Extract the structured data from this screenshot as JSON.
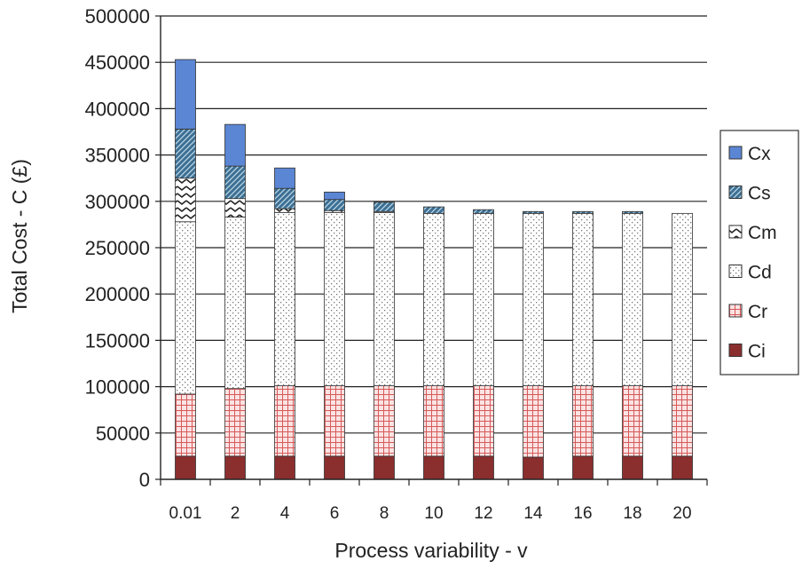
{
  "chart_data": {
    "type": "bar",
    "stacked": true,
    "xlabel": "Process variability - v",
    "ylabel": "Total Cost - C (£)",
    "ylim": [
      0,
      500000
    ],
    "yticks": [
      0,
      50000,
      100000,
      150000,
      200000,
      250000,
      300000,
      350000,
      400000,
      450000,
      500000
    ],
    "grid": true,
    "legend_position": "right",
    "categories": [
      "0.01",
      "2",
      "4",
      "6",
      "8",
      "10",
      "12",
      "14",
      "16",
      "18",
      "20"
    ],
    "series": [
      {
        "name": "Ci",
        "color": "#8b2e2e",
        "pattern": "solid",
        "values": [
          25000,
          25000,
          25000,
          25000,
          25000,
          25000,
          25000,
          24000,
          25000,
          25000,
          25000
        ]
      },
      {
        "name": "Cr",
        "color": "#d65a5a",
        "pattern": "grid",
        "values": [
          67000,
          73000,
          76000,
          76000,
          76000,
          76000,
          76000,
          77000,
          76000,
          76000,
          76000
        ]
      },
      {
        "name": "Cd",
        "color": "#666666",
        "pattern": "dots",
        "values": [
          186000,
          185000,
          187000,
          187000,
          187000,
          186000,
          186000,
          186000,
          186000,
          186000,
          186000
        ]
      },
      {
        "name": "Cm",
        "color": "#222222",
        "pattern": "zigzag",
        "values": [
          47000,
          20000,
          4000,
          2000,
          1000,
          0,
          0,
          0,
          0,
          0,
          0
        ]
      },
      {
        "name": "Cs",
        "color": "#3c6f93",
        "pattern": "diag",
        "values": [
          53000,
          35000,
          22000,
          12000,
          10000,
          7000,
          4000,
          2000,
          2000,
          2000,
          0
        ]
      },
      {
        "name": "Cx",
        "color": "#5b86d4",
        "pattern": "solid",
        "values": [
          75000,
          45000,
          22000,
          8000,
          0,
          0,
          0,
          0,
          0,
          0,
          0
        ]
      }
    ]
  }
}
